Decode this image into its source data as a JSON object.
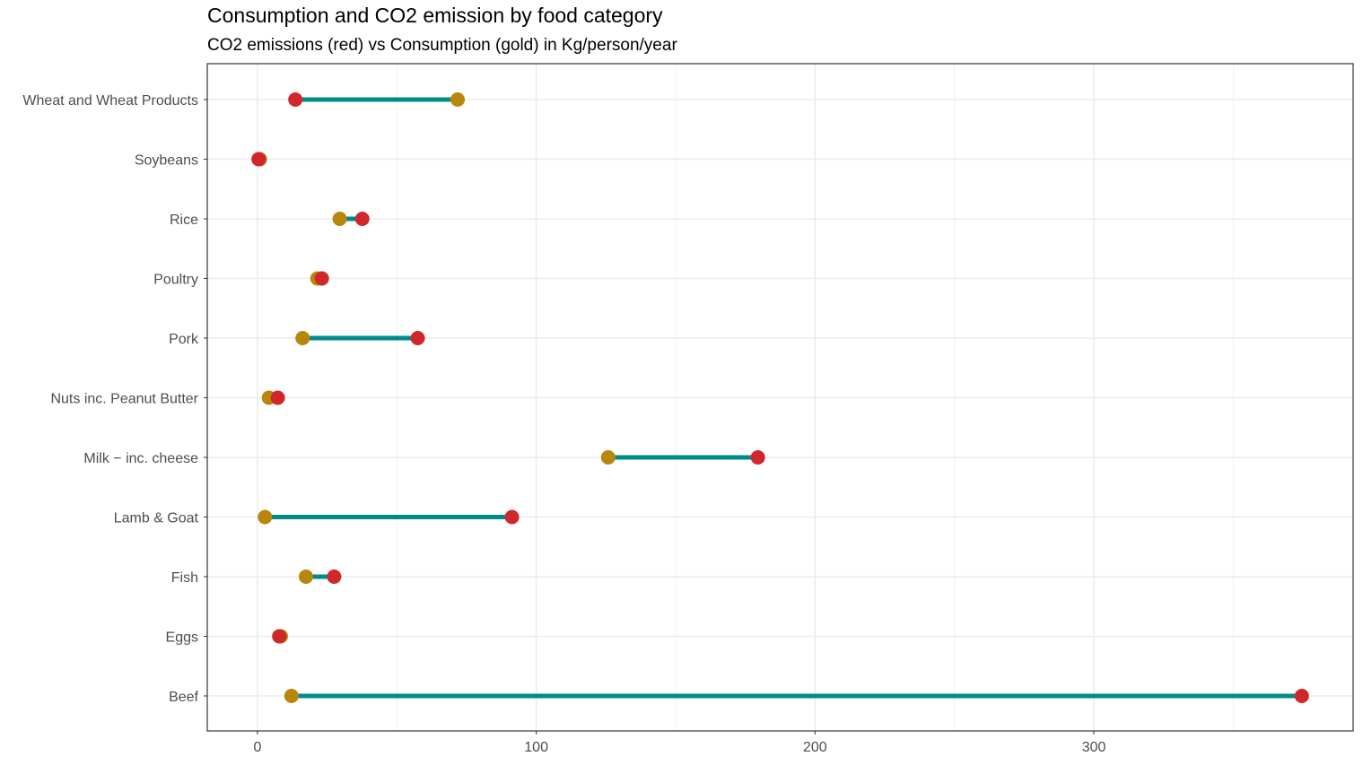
{
  "chart_data": {
    "type": "dumbbell",
    "title": "Consumption and CO2 emission by food category",
    "subtitle": "CO2 emissions (red) vs Consumption (gold) in Kg/person/year",
    "xlabel": "",
    "ylabel": "",
    "xlim": [
      -18,
      393
    ],
    "x_ticks": [
      0,
      100,
      200,
      300
    ],
    "x_minor_ticks": [
      50,
      150,
      250,
      350
    ],
    "grid": true,
    "categories": [
      "Wheat and Wheat Products",
      "Soybeans",
      "Rice",
      "Poultry",
      "Pork",
      "Nuts inc. Peanut Butter",
      "Milk − inc. cheese",
      "Lamb & Goat",
      "Fish",
      "Eggs",
      "Beef"
    ],
    "series": [
      {
        "name": "Consumption",
        "color": "#B8860B",
        "values": [
          71.8,
          0.9,
          29.5,
          21.5,
          16.2,
          4.1,
          125.8,
          2.7,
          17.4,
          8.4,
          12.2
        ]
      },
      {
        "name": "CO2 emissions",
        "color": "#D0272B",
        "values": [
          13.6,
          0.4,
          37.6,
          23.1,
          57.5,
          7.3,
          179.5,
          91.3,
          27.5,
          7.8,
          374.6
        ]
      }
    ],
    "segment_color": "#008B8B",
    "panel_border_color": "#333333",
    "grid_color": "#ebebeb"
  }
}
